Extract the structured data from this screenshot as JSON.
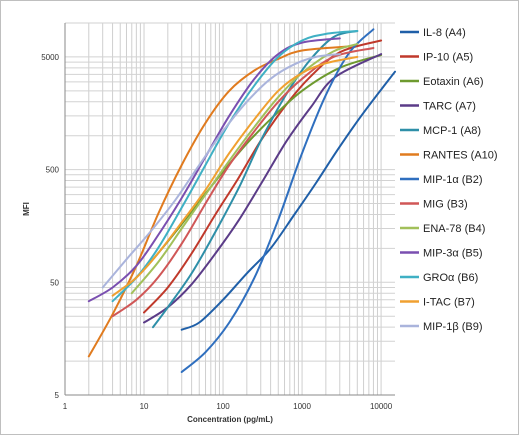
{
  "chart_data": {
    "type": "line",
    "title": "",
    "xlabel": "Concentration (pg/mL)",
    "ylabel": "MFI",
    "x_scale": "log",
    "y_scale": "log",
    "xlim": [
      1,
      15000
    ],
    "ylim": [
      5,
      10000
    ],
    "x_ticks": [
      1,
      10,
      100,
      1000,
      10000
    ],
    "x_tick_labels": [
      "1",
      "10",
      "100",
      "1000",
      "10000"
    ],
    "y_ticks": [
      5,
      50,
      500,
      5000
    ],
    "y_tick_labels": [
      "5",
      "50",
      "500",
      "5000"
    ],
    "grid": true,
    "legend_position": "right",
    "series": [
      {
        "name": "IL-8 (A4)",
        "color": "#1f5fa8",
        "x": [
          30,
          50,
          100,
          200,
          400,
          800,
          1500,
          3000,
          6000,
          15000
        ],
        "y": [
          19,
          22,
          35,
          60,
          100,
          200,
          380,
          800,
          1600,
          3700
        ]
      },
      {
        "name": "IP-10 (A5)",
        "color": "#c0392b",
        "x": [
          10,
          20,
          40,
          80,
          150,
          300,
          600,
          1200,
          3000,
          10000
        ],
        "y": [
          27,
          45,
          90,
          200,
          400,
          900,
          1800,
          3200,
          5500,
          7000
        ]
      },
      {
        "name": "Eotaxin (A6)",
        "color": "#6e9a2f",
        "x": [
          6,
          12,
          25,
          50,
          100,
          200,
          400,
          1000,
          3000,
          10000
        ],
        "y": [
          45,
          75,
          140,
          260,
          480,
          850,
          1400,
          2500,
          4000,
          5200
        ]
      },
      {
        "name": "TARC (A7)",
        "color": "#5b3c88",
        "x": [
          10,
          20,
          40,
          80,
          160,
          320,
          640,
          1300,
          2600,
          10000
        ],
        "y": [
          22,
          30,
          48,
          90,
          180,
          400,
          900,
          1800,
          3300,
          5300
        ]
      },
      {
        "name": "MCP-1 (A8)",
        "color": "#2e8fa8",
        "x": [
          13,
          20,
          40,
          80,
          160,
          300,
          600,
          1200,
          2500,
          5000
        ],
        "y": [
          20,
          30,
          60,
          140,
          350,
          900,
          2200,
          4500,
          7500,
          8500
        ]
      },
      {
        "name": "RANTES (A10)",
        "color": "#e07b1f",
        "x": [
          2,
          4,
          8,
          15,
          30,
          60,
          120,
          250,
          500,
          1000,
          4000
        ],
        "y": [
          11,
          26,
          70,
          200,
          550,
          1300,
          2500,
          3800,
          4800,
          5700,
          6200
        ]
      },
      {
        "name": "MIP-1α (B2)",
        "color": "#2f6fbf",
        "x": [
          30,
          60,
          120,
          250,
          500,
          1000,
          2000,
          4000,
          8000
        ],
        "y": [
          8,
          12,
          22,
          55,
          180,
          700,
          2300,
          5500,
          8800
        ]
      },
      {
        "name": "MIG (B3)",
        "color": "#d05757",
        "x": [
          4,
          8,
          15,
          30,
          60,
          120,
          250,
          500,
          1000,
          2500,
          8000
        ],
        "y": [
          25,
          35,
          55,
          110,
          250,
          550,
          1100,
          2000,
          3200,
          5000,
          6000
        ]
      },
      {
        "name": "ENA-78 (B4)",
        "color": "#a2c05a",
        "x": [
          7,
          15,
          30,
          60,
          120,
          250,
          500,
          1000,
          2500,
          5000
        ],
        "y": [
          40,
          75,
          150,
          300,
          600,
          1200,
          2200,
          3600,
          5600,
          6500
        ]
      },
      {
        "name": "MIP-3α (B5)",
        "color": "#7a4fb0",
        "x": [
          2,
          4,
          8,
          15,
          30,
          60,
          120,
          250,
          500,
          1000,
          3000
        ],
        "y": [
          34,
          45,
          70,
          130,
          280,
          650,
          1500,
          3200,
          5300,
          6700,
          7300
        ]
      },
      {
        "name": "GROα (B6)",
        "color": "#3fb0c4",
        "x": [
          4,
          8,
          15,
          30,
          60,
          120,
          250,
          500,
          1000,
          2000,
          5000
        ],
        "y": [
          34,
          55,
          100,
          230,
          550,
          1300,
          2800,
          5000,
          7000,
          8000,
          8500
        ]
      },
      {
        "name": "I-TAC (B7)",
        "color": "#f0a030",
        "x": [
          4,
          8,
          15,
          30,
          60,
          120,
          250,
          500,
          1000,
          2000,
          5000
        ],
        "y": [
          38,
          55,
          90,
          170,
          330,
          700,
          1400,
          2500,
          3600,
          4400,
          5000
        ]
      },
      {
        "name": "MIP-1β (B9)",
        "color": "#aab4dc",
        "x": [
          3,
          6,
          12,
          25,
          50,
          100,
          200,
          400,
          800,
          1500,
          3000
        ],
        "y": [
          45,
          80,
          140,
          270,
          550,
          1100,
          2000,
          3200,
          4300,
          5000,
          5300
        ]
      }
    ]
  }
}
